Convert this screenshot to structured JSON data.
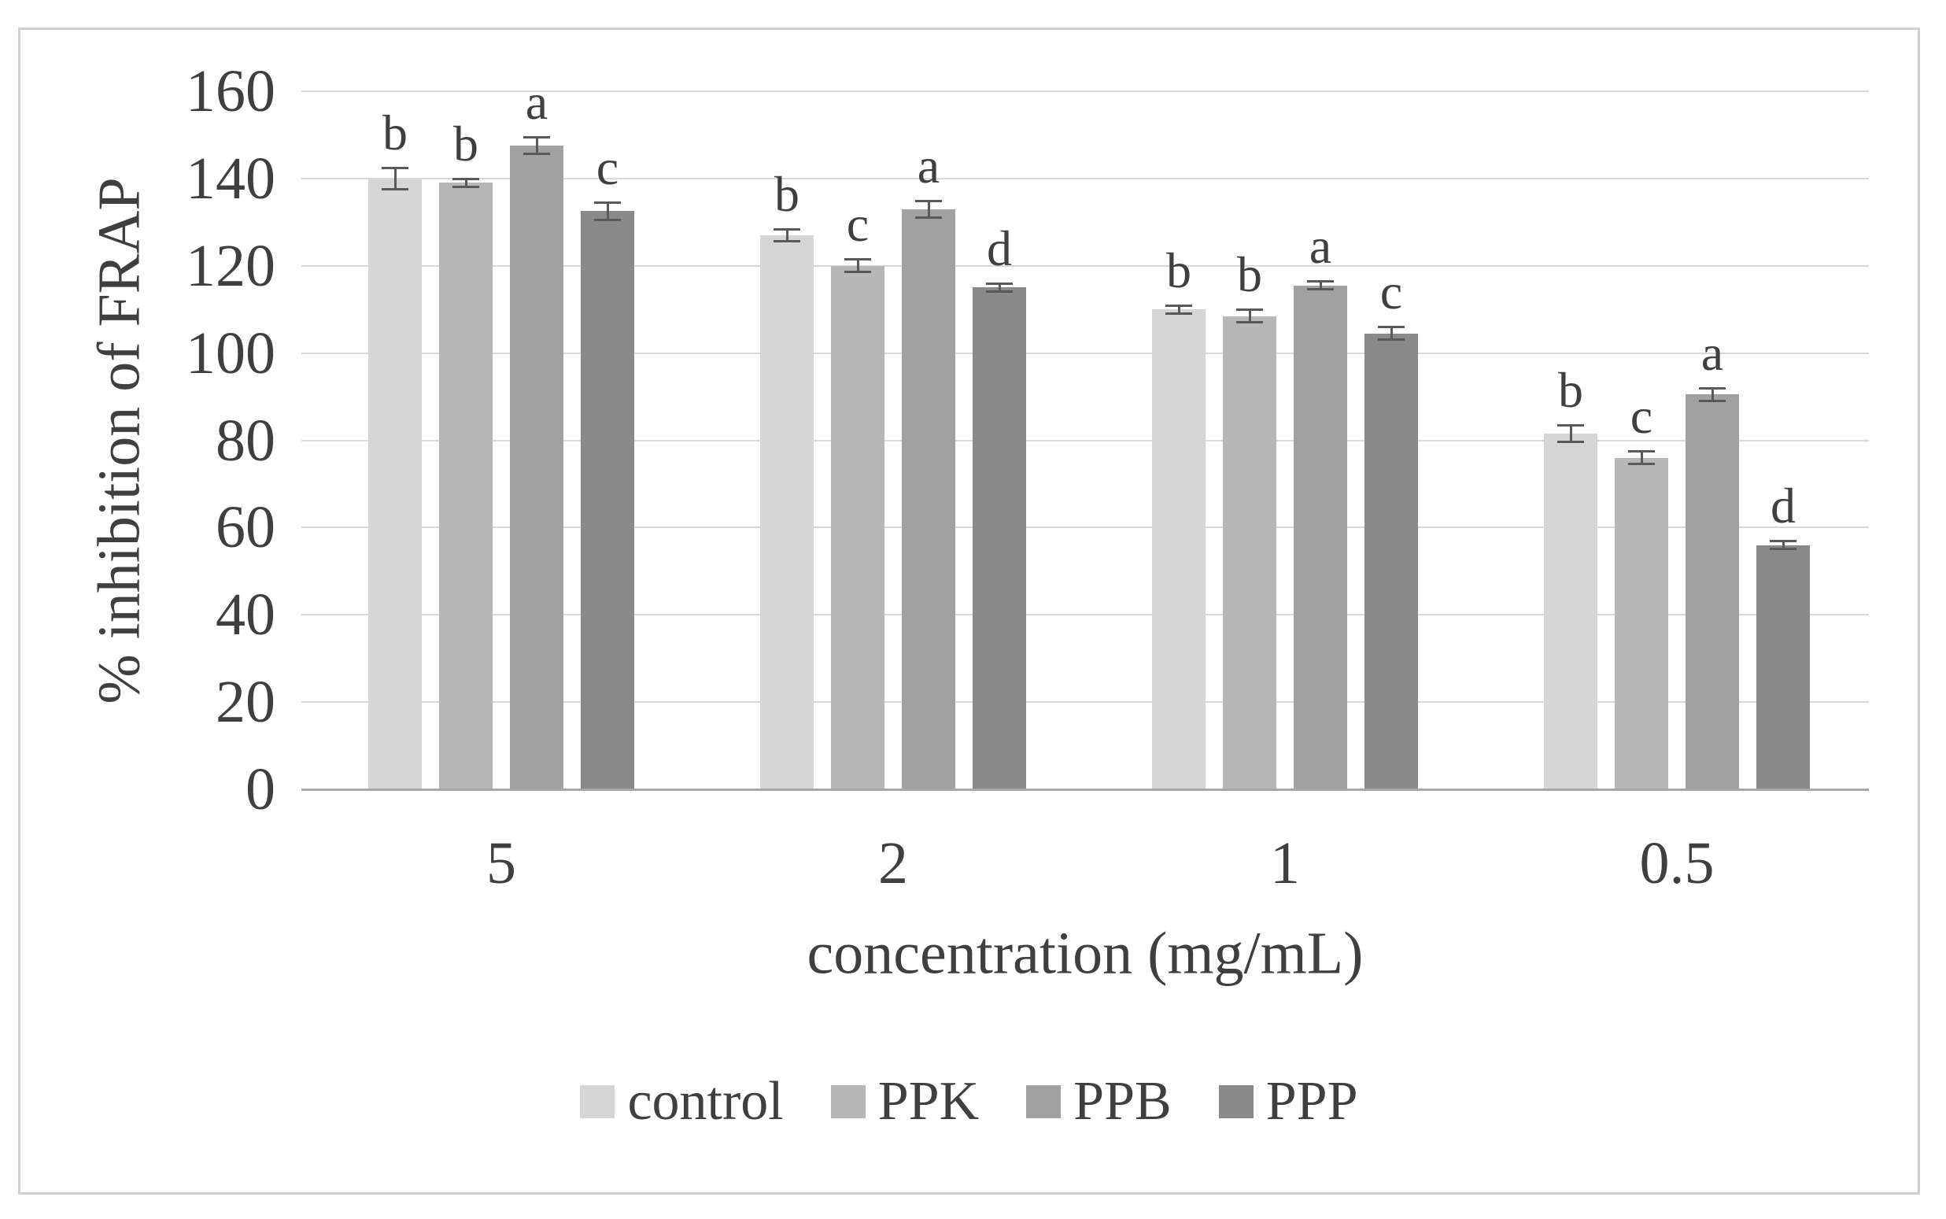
{
  "figure": {
    "background": "#ffffff",
    "border_color": "#d0d0d0",
    "text_color": "#3f3f3f",
    "gridline_color": "#d9d9d9",
    "axis_line_color": "#a6a6a6",
    "error_bar_color": "#595959"
  },
  "chart_data": {
    "type": "bar",
    "title": "",
    "xlabel": "concentration (mg/mL)",
    "ylabel": "% inhibition of FRAP",
    "categories": [
      "5",
      "2",
      "1",
      "0.5"
    ],
    "series": [
      {
        "name": "control",
        "color": "#d6d6d6",
        "values": [
          140,
          127,
          110,
          81.5
        ],
        "errors": [
          2.5,
          1.5,
          1,
          2
        ],
        "sig_letters": [
          "b",
          "b",
          "b",
          "b"
        ]
      },
      {
        "name": "PPK",
        "color": "#b7b7b7",
        "values": [
          139,
          120,
          108.5,
          76
        ],
        "errors": [
          1,
          1.5,
          1.5,
          1.5
        ],
        "sig_letters": [
          "b",
          "c",
          "b",
          "c"
        ]
      },
      {
        "name": "PPB",
        "color": "#a1a1a1",
        "values": [
          147.5,
          133,
          115.5,
          90.5
        ],
        "errors": [
          2,
          2,
          1,
          1.5
        ],
        "sig_letters": [
          "a",
          "a",
          "a",
          "a"
        ]
      },
      {
        "name": "PPP",
        "color": "#8a8a8a",
        "values": [
          132.5,
          115,
          104.5,
          56
        ],
        "errors": [
          2,
          1,
          1.5,
          1
        ],
        "sig_letters": [
          "c",
          "d",
          "c",
          "d"
        ]
      }
    ],
    "yaxis": {
      "min": 0,
      "max": 160,
      "step": 20,
      "tick_labels": [
        "0",
        "20",
        "40",
        "60",
        "80",
        "100",
        "120",
        "140",
        "160"
      ]
    },
    "grid": true,
    "legend_position": "bottom",
    "legend_labels": [
      "control",
      "PPK",
      "PPB",
      "PPP"
    ]
  }
}
